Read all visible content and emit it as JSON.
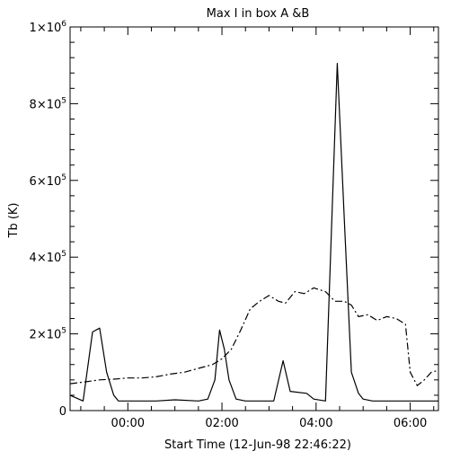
{
  "chart_data": {
    "type": "line",
    "title": "Max I in box A &B",
    "xlabel": "Start Time (12-Jun-98 22:46:22)",
    "ylabel": "Tb (K)",
    "x_unit": "hours",
    "xlim": [
      -1.2273,
      6.6
    ],
    "ylim": [
      0,
      1000000
    ],
    "x_ticks": [
      {
        "value": 0,
        "label": "00:00"
      },
      {
        "value": 2,
        "label": "02:00"
      },
      {
        "value": 4,
        "label": "04:00"
      },
      {
        "value": 6,
        "label": "06:00"
      }
    ],
    "y_ticks": [
      {
        "value": 0,
        "label": "0",
        "exp": ""
      },
      {
        "value": 200000,
        "label": "2×10",
        "exp": "5"
      },
      {
        "value": 400000,
        "label": "4×10",
        "exp": "5"
      },
      {
        "value": 600000,
        "label": "6×10",
        "exp": "5"
      },
      {
        "value": 800000,
        "label": "8×10",
        "exp": "5"
      },
      {
        "value": 1000000,
        "label": "1×10",
        "exp": "6"
      }
    ],
    "series": [
      {
        "style": "solid",
        "points": [
          [
            -1.227,
            40000
          ],
          [
            -0.95,
            25000
          ],
          [
            -0.75,
            205000
          ],
          [
            -0.6,
            215000
          ],
          [
            -0.45,
            100000
          ],
          [
            -0.3,
            40000
          ],
          [
            -0.2,
            25000
          ],
          [
            0.0,
            25000
          ],
          [
            0.3,
            25000
          ],
          [
            0.6,
            25000
          ],
          [
            1.0,
            28000
          ],
          [
            1.5,
            25000
          ],
          [
            1.7,
            30000
          ],
          [
            1.85,
            80000
          ],
          [
            1.95,
            210000
          ],
          [
            2.05,
            160000
          ],
          [
            2.15,
            80000
          ],
          [
            2.3,
            30000
          ],
          [
            2.5,
            25000
          ],
          [
            2.8,
            25000
          ],
          [
            3.1,
            25000
          ],
          [
            3.3,
            130000
          ],
          [
            3.45,
            50000
          ],
          [
            3.8,
            45000
          ],
          [
            3.95,
            30000
          ],
          [
            4.2,
            25000
          ],
          [
            4.45,
            905000
          ],
          [
            4.6,
            500000
          ],
          [
            4.75,
            100000
          ],
          [
            4.9,
            45000
          ],
          [
            5.0,
            30000
          ],
          [
            5.2,
            25000
          ],
          [
            5.5,
            25000
          ],
          [
            5.8,
            25000
          ],
          [
            6.0,
            25000
          ],
          [
            6.3,
            25000
          ],
          [
            6.6,
            25000
          ]
        ]
      },
      {
        "style": "dash-dot",
        "points": [
          [
            -1.227,
            70000
          ],
          [
            -0.9,
            75000
          ],
          [
            -0.6,
            80000
          ],
          [
            -0.3,
            82000
          ],
          [
            0.0,
            85000
          ],
          [
            0.3,
            85000
          ],
          [
            0.6,
            88000
          ],
          [
            0.9,
            95000
          ],
          [
            1.2,
            100000
          ],
          [
            1.5,
            110000
          ],
          [
            1.8,
            120000
          ],
          [
            2.0,
            135000
          ],
          [
            2.2,
            160000
          ],
          [
            2.4,
            210000
          ],
          [
            2.6,
            265000
          ],
          [
            2.8,
            285000
          ],
          [
            3.0,
            300000
          ],
          [
            3.2,
            285000
          ],
          [
            3.35,
            280000
          ],
          [
            3.55,
            310000
          ],
          [
            3.75,
            305000
          ],
          [
            3.95,
            320000
          ],
          [
            4.2,
            310000
          ],
          [
            4.4,
            285000
          ],
          [
            4.6,
            285000
          ],
          [
            4.75,
            275000
          ],
          [
            4.9,
            245000
          ],
          [
            5.1,
            250000
          ],
          [
            5.3,
            235000
          ],
          [
            5.5,
            245000
          ],
          [
            5.7,
            240000
          ],
          [
            5.9,
            225000
          ],
          [
            6.0,
            100000
          ],
          [
            6.15,
            65000
          ],
          [
            6.3,
            80000
          ],
          [
            6.45,
            100000
          ],
          [
            6.6,
            105000
          ]
        ]
      }
    ]
  }
}
